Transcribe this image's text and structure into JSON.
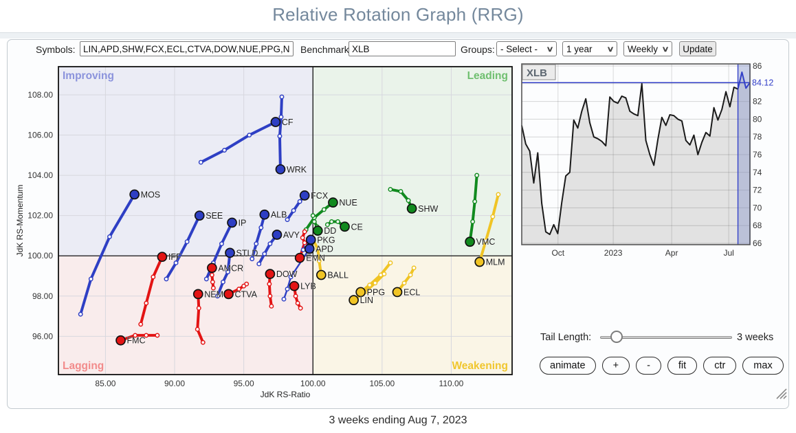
{
  "header": {
    "title": "Relative Rotation Graph (RRG)"
  },
  "controls": {
    "symbols_label": "Symbols:",
    "symbols_value": "LIN,APD,SHW,FCX,ECL,CTVA,DOW,NUE,PPG,NE",
    "benchmark_label": "Benchmark:",
    "benchmark_value": "XLB",
    "groups_label": "Groups:",
    "groups_value": "- Select -",
    "period_value": "1 year",
    "frequency_value": "Weekly",
    "update_label": "Update",
    "chevron": "∨"
  },
  "tail_control": {
    "label": "Tail Length:",
    "value_label": "3 weeks"
  },
  "buttons": [
    "animate",
    "+",
    "-",
    "fit",
    "ctr",
    "max"
  ],
  "footer": {
    "caption": "3 weeks ending Aug 7, 2023"
  },
  "chart_data": [
    {
      "type": "scatter",
      "name": "rrg",
      "xlabel": "JdK RS-Ratio",
      "ylabel": "JdK RS-Momentum",
      "xlim": [
        81.6,
        114.4
      ],
      "ylim": [
        94.1,
        109.4
      ],
      "center": [
        100,
        100
      ],
      "xticks": [
        {
          "v": 85,
          "label": "85.00"
        },
        {
          "v": 90,
          "label": "90.00"
        },
        {
          "v": 95,
          "label": "95.00"
        },
        {
          "v": 100,
          "label": "100.00"
        },
        {
          "v": 105,
          "label": "105.00"
        },
        {
          "v": 110,
          "label": "110.00"
        }
      ],
      "yticks": [
        {
          "v": 96,
          "label": "96.00"
        },
        {
          "v": 98,
          "label": "98.00"
        },
        {
          "v": 100,
          "label": "100.00"
        },
        {
          "v": 102,
          "label": "102.00"
        },
        {
          "v": 104,
          "label": "104.00"
        },
        {
          "v": 106,
          "label": "106.00"
        },
        {
          "v": 108,
          "label": "108.00"
        }
      ],
      "quadrants": {
        "improving": {
          "label": "Improving",
          "bg": "#ebecf5",
          "label_color": "#8b93dc"
        },
        "leading": {
          "label": "Leading",
          "bg": "#eaf3ea",
          "label_color": "#6fbf6f"
        },
        "lagging": {
          "label": "Lagging",
          "bg": "#f9ecec",
          "label_color": "#f28b8b"
        },
        "weakening": {
          "label": "Weakening",
          "bg": "#faf5e6",
          "label_color": "#f0c62e"
        }
      },
      "colors": {
        "blue": "#2e3fc4",
        "green": "#118a1f",
        "red": "#e31414",
        "yellow": "#f0c425"
      },
      "series": [
        {
          "symbol": "MOS",
          "color": "blue",
          "head": [
            87.1,
            103.05
          ],
          "tail": [
            [
              83.2,
              97.1
            ],
            [
              83.95,
              98.85
            ],
            [
              85.3,
              100.95
            ]
          ]
        },
        {
          "symbol": "CF",
          "color": "blue",
          "head": [
            97.3,
            106.65
          ],
          "tail": [
            [
              91.9,
              104.65
            ],
            [
              93.6,
              105.25
            ],
            [
              95.4,
              106.0
            ]
          ]
        },
        {
          "symbol": "WRK",
          "color": "blue",
          "head": [
            97.65,
            104.3
          ],
          "tail": [
            [
              97.75,
              107.9
            ],
            [
              97.7,
              106.9
            ],
            [
              97.6,
              105.95
            ]
          ]
        },
        {
          "symbol": "SEE",
          "color": "blue",
          "head": [
            91.8,
            102.0
          ],
          "tail": [
            [
              89.4,
              98.85
            ],
            [
              90.1,
              99.65
            ],
            [
              90.9,
              100.7
            ]
          ]
        },
        {
          "symbol": "IP",
          "color": "blue",
          "head": [
            94.15,
            101.65
          ],
          "tail": [
            [
              92.3,
              98.85
            ],
            [
              92.8,
              99.65
            ],
            [
              93.4,
              100.6
            ]
          ]
        },
        {
          "symbol": "ALB",
          "color": "blue",
          "head": [
            96.5,
            102.05
          ],
          "tail": [
            [
              95.6,
              99.85
            ],
            [
              95.9,
              100.6
            ],
            [
              96.25,
              101.4
            ]
          ]
        },
        {
          "symbol": "FCX",
          "color": "blue",
          "head": [
            99.4,
            103.0
          ],
          "tail": [
            [
              98.15,
              101.8
            ],
            [
              98.6,
              102.25
            ],
            [
              99.05,
              102.7
            ]
          ]
        },
        {
          "symbol": "AVY",
          "color": "blue",
          "head": [
            97.4,
            101.05
          ],
          "tail": [
            [
              96.1,
              99.6
            ],
            [
              96.5,
              100.1
            ],
            [
              96.9,
              100.6
            ]
          ]
        },
        {
          "symbol": "PKG",
          "color": "blue",
          "head": [
            99.85,
            100.8
          ],
          "tail": [
            [
              99.3,
              100.3
            ],
            [
              99.5,
              100.5
            ],
            [
              99.7,
              100.7
            ]
          ]
        },
        {
          "symbol": "APD",
          "color": "blue",
          "head": [
            99.75,
            100.35
          ],
          "tail": [
            [
              97.9,
              97.85
            ],
            [
              98.15,
              98.35
            ],
            [
              98.4,
              98.95
            ]
          ],
          "thin": true
        },
        {
          "symbol": "STLD",
          "color": "blue",
          "head": [
            94.0,
            100.15
          ],
          "tail": [
            [
              93.1,
              98.0
            ],
            [
              93.5,
              98.7
            ],
            [
              93.85,
              99.2
            ]
          ]
        },
        {
          "symbol": "NUE",
          "color": "green",
          "head": [
            101.45,
            102.65
          ],
          "tail": [
            [
              99.5,
              101.3
            ],
            [
              100.1,
              101.9
            ],
            [
              100.8,
              102.3
            ]
          ]
        },
        {
          "symbol": "SHW",
          "color": "green",
          "head": [
            107.15,
            102.35
          ],
          "tail": [
            [
              105.6,
              103.3
            ],
            [
              106.35,
              103.2
            ],
            [
              106.9,
              102.75
            ]
          ]
        },
        {
          "symbol": "CE",
          "color": "green",
          "head": [
            102.3,
            101.45
          ],
          "tail": [
            [
              101.05,
              101.55
            ],
            [
              101.35,
              101.7
            ],
            [
              101.8,
              101.7
            ]
          ]
        },
        {
          "symbol": "DD",
          "color": "green",
          "head": [
            100.35,
            101.25
          ],
          "tail": [
            [
              100.0,
              102.0
            ],
            [
              100.1,
              101.7
            ],
            [
              100.3,
              101.45
            ]
          ]
        },
        {
          "symbol": "VMC",
          "color": "green",
          "head": [
            111.35,
            100.7
          ],
          "tail": [
            [
              111.85,
              104.0
            ],
            [
              111.7,
              102.7
            ],
            [
              111.55,
              101.7
            ]
          ]
        },
        {
          "symbol": "IFF",
          "color": "red",
          "head": [
            89.1,
            99.95
          ],
          "tail": [
            [
              87.55,
              96.6
            ],
            [
              87.95,
              97.65
            ],
            [
              88.45,
              98.95
            ]
          ]
        },
        {
          "symbol": "EMN",
          "color": "red",
          "head": [
            99.05,
            99.9
          ],
          "tail": [
            [
              99.4,
              101.2
            ],
            [
              99.25,
              100.9
            ],
            [
              99.4,
              100.65
            ]
          ]
        },
        {
          "symbol": "AMCR",
          "color": "red",
          "head": [
            92.7,
            99.4
          ],
          "tail": [
            [
              92.8,
              98.4
            ],
            [
              92.75,
              98.7
            ],
            [
              92.7,
              99.05
            ]
          ]
        },
        {
          "symbol": "DOW",
          "color": "red",
          "head": [
            96.9,
            99.1
          ],
          "tail": [
            [
              97.0,
              97.5
            ],
            [
              96.9,
              98.0
            ],
            [
              96.85,
              98.6
            ]
          ]
        },
        {
          "symbol": "NEM",
          "color": "red",
          "head": [
            91.7,
            98.1
          ],
          "tail": [
            [
              92.05,
              95.7
            ],
            [
              91.65,
              96.35
            ],
            [
              91.75,
              97.4
            ]
          ]
        },
        {
          "symbol": "CTVA",
          "color": "red",
          "head": [
            93.9,
            98.1
          ],
          "tail": [
            [
              95.2,
              98.6
            ],
            [
              95.0,
              98.5
            ],
            [
              94.65,
              98.35
            ]
          ]
        },
        {
          "symbol": "LYB",
          "color": "red",
          "head": [
            98.65,
            98.5
          ],
          "tail": [
            [
              99.1,
              97.4
            ],
            [
              98.9,
              97.65
            ],
            [
              98.75,
              98.0
            ]
          ]
        },
        {
          "symbol": "FMC",
          "color": "red",
          "head": [
            86.1,
            95.8
          ],
          "tail": [
            [
              88.75,
              96.05
            ],
            [
              87.95,
              96.05
            ],
            [
              87.15,
              96.05
            ]
          ]
        },
        {
          "symbol": "BALL",
          "color": "yellow",
          "head": [
            100.6,
            99.05
          ],
          "tail": [
            [
              100.0,
              100.8
            ],
            [
              100.35,
              100.35
            ],
            [
              100.45,
              99.75
            ]
          ]
        },
        {
          "symbol": "PPG",
          "color": "yellow",
          "head": [
            103.45,
            98.2
          ],
          "tail": [
            [
              105.6,
              99.65
            ],
            [
              104.9,
              99.05
            ],
            [
              104.1,
              98.55
            ]
          ]
        },
        {
          "symbol": "LIN",
          "color": "yellow",
          "head": [
            102.95,
            97.8
          ],
          "tail": [
            [
              105.15,
              99.1
            ],
            [
              104.5,
              98.65
            ],
            [
              103.75,
              98.2
            ]
          ]
        },
        {
          "symbol": "ECL",
          "color": "yellow",
          "head": [
            106.1,
            98.2
          ],
          "tail": [
            [
              107.3,
              99.4
            ],
            [
              107.05,
              99.05
            ],
            [
              106.6,
              98.65
            ]
          ]
        },
        {
          "symbol": "MLM",
          "color": "yellow",
          "head": [
            112.05,
            99.7
          ],
          "tail": [
            [
              113.4,
              103.05
            ],
            [
              113.0,
              101.95
            ],
            [
              112.5,
              100.75
            ]
          ]
        }
      ]
    },
    {
      "type": "area",
      "name": "benchmark",
      "title": "XLB",
      "last_price": 84.12,
      "last_price_label": "84.12",
      "ylim": [
        66,
        86
      ],
      "yticks": [
        {
          "v": 66,
          "label": "66"
        },
        {
          "v": 68,
          "label": "68"
        },
        {
          "v": 70,
          "label": "70"
        },
        {
          "v": 72,
          "label": "72"
        },
        {
          "v": 74,
          "label": "74"
        },
        {
          "v": 76,
          "label": "76"
        },
        {
          "v": 78,
          "label": "78"
        },
        {
          "v": 80,
          "label": "80"
        },
        {
          "v": 82,
          "label": "82"
        },
        {
          "v": 86,
          "label": "86"
        }
      ],
      "x_ticks": [
        {
          "label": "Oct",
          "f": 0.159
        },
        {
          "label": "2023",
          "f": 0.401
        },
        {
          "label": "Apr",
          "f": 0.657
        },
        {
          "label": "Jul",
          "f": 0.907
        }
      ],
      "highlight_weeks": 3,
      "accent_color": "#3340c8",
      "values": [
        79.3,
        77.2,
        76.4,
        72.8,
        76.2,
        70.5,
        67.3,
        67.0,
        68.1,
        67.1,
        70.6,
        73.6,
        74.0,
        79.9,
        79.0,
        80.9,
        82.3,
        79.6,
        78.0,
        77.8,
        77.5,
        77.0,
        82.5,
        82.0,
        81.8,
        82.6,
        82.4,
        80.9,
        80.6,
        80.4,
        84.0,
        77.6,
        76.0,
        74.8,
        77.7,
        80.2,
        79.3,
        80.5,
        80.4,
        80.0,
        79.8,
        77.6,
        77.1,
        78.2,
        76.0,
        77.4,
        78.5,
        78.1,
        81.3,
        79.9,
        81.1,
        83.1,
        81.4,
        83.6,
        83.4,
        85.3,
        83.5,
        84.12
      ]
    }
  ]
}
